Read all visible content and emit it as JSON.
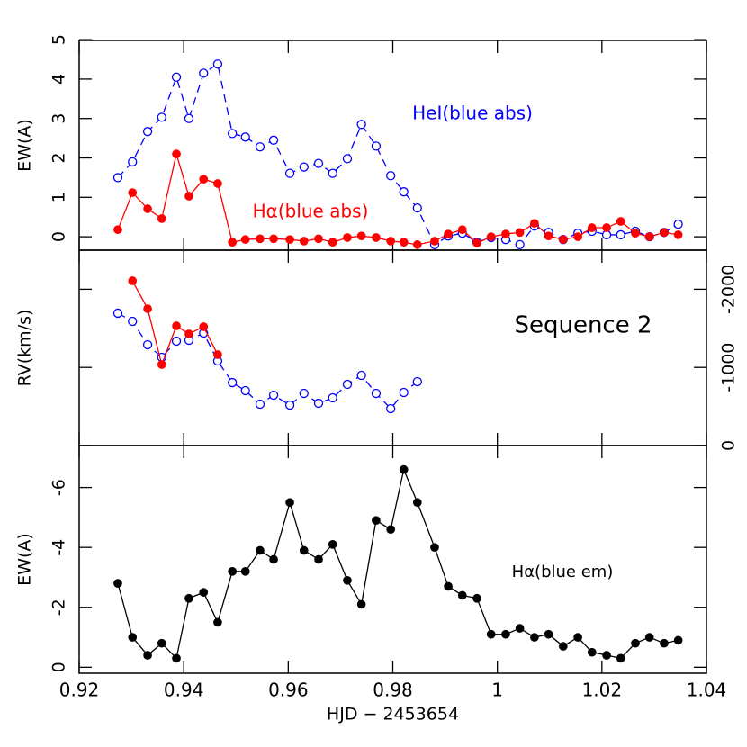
{
  "chart_data": [
    {
      "type": "line",
      "ylabel": "EW(A)",
      "ylim": [
        -0.34,
        4.98
      ],
      "yticks": [
        0,
        1,
        2,
        3,
        4,
        5
      ],
      "x": [
        0.9274,
        0.9302,
        0.9331,
        0.9358,
        0.9386,
        0.941,
        0.9438,
        0.9465,
        0.9493,
        0.9518,
        0.9546,
        0.9572,
        0.9603,
        0.963,
        0.9658,
        0.9685,
        0.9713,
        0.974,
        0.9768,
        0.9796,
        0.9821,
        0.9847,
        0.988,
        0.9906,
        0.9933,
        0.9961,
        0.9988,
        1.0016,
        1.0043,
        1.0071,
        1.0098,
        1.0126,
        1.0154,
        1.0181,
        1.0209,
        1.0236,
        1.0264,
        1.0291,
        1.0319,
        1.0346
      ],
      "series": [
        {
          "name": "HeI(blue abs)",
          "color": "#0000ff",
          "marker": "open",
          "linestyle": "dashed",
          "values": [
            1.5,
            1.9,
            2.67,
            3.03,
            4.05,
            3.0,
            4.15,
            4.38,
            2.62,
            2.53,
            2.28,
            2.45,
            1.61,
            1.77,
            1.86,
            1.61,
            1.98,
            2.85,
            2.3,
            1.55,
            1.14,
            0.73,
            -0.2,
            0.02,
            0.09,
            -0.14,
            -0.02,
            -0.07,
            -0.2,
            0.27,
            0.11,
            -0.07,
            0.09,
            0.14,
            0.05,
            0.05,
            0.14,
            0,
            0.11,
            0.32
          ]
        },
        {
          "name": "Hα(blue abs)",
          "color": "#ff0000",
          "marker": "filled",
          "linestyle": "solid",
          "values": [
            0.18,
            1.12,
            0.71,
            0.46,
            2.1,
            1.03,
            1.46,
            1.35,
            -0.14,
            -0.07,
            -0.05,
            -0.05,
            -0.07,
            -0.11,
            -0.05,
            -0.14,
            -0.02,
            0.02,
            -0.02,
            -0.11,
            -0.14,
            -0.2,
            -0.11,
            0.07,
            0.18,
            -0.16,
            0,
            0.07,
            0.11,
            0.34,
            0.02,
            -0.07,
            0,
            0.23,
            0.23,
            0.39,
            0.09,
            0,
            0.11,
            0.05
          ]
        }
      ]
    },
    {
      "type": "line",
      "ylabel": "RV(km/s)",
      "annotation": "Sequence 2",
      "y2lim": [
        0,
        -2500
      ],
      "y2ticks": [
        0,
        -1000,
        -2000
      ],
      "series": [
        {
          "name": "HeI",
          "color": "#0000ff",
          "marker": "open",
          "linestyle": "dashed",
          "axis": "y2",
          "x": [
            0.9274,
            0.9302,
            0.9331,
            0.9358,
            0.9386,
            0.941,
            0.9438,
            0.9465,
            0.9493,
            0.9518,
            0.9546,
            0.9572,
            0.9603,
            0.963,
            0.9658,
            0.9685,
            0.9713,
            0.974,
            0.9768,
            0.9796,
            0.9821,
            0.9847
          ],
          "values": [
            -1694,
            -1590,
            -1290,
            -1129,
            -1336,
            -1348,
            -1440,
            -1083,
            -806,
            -703,
            -530,
            -645,
            -518,
            -668,
            -541,
            -611,
            -783,
            -899,
            -668,
            -472,
            -680,
            -818
          ]
        },
        {
          "name": "Hα",
          "color": "#ff0000",
          "marker": "filled",
          "linestyle": "solid",
          "axis": "y2",
          "x": [
            0.9302,
            0.9331,
            0.9358,
            0.9386,
            0.941,
            0.9438,
            0.9465
          ],
          "values": [
            -2108,
            -1751,
            -1037,
            -1532,
            -1429,
            -1521,
            -1164
          ]
        }
      ]
    },
    {
      "type": "line",
      "ylabel": "EW(A)",
      "xlabel": "HJD − 2453654",
      "ylim": [
        0.2,
        -7.4
      ],
      "yticks": [
        0,
        -2,
        -4,
        -6
      ],
      "xlim": [
        0.92,
        1.04
      ],
      "xticks": [
        0.92,
        0.94,
        0.96,
        0.98,
        1,
        1.02,
        1.04
      ],
      "x": [
        0.9274,
        0.9302,
        0.9331,
        0.9358,
        0.9386,
        0.941,
        0.9438,
        0.9465,
        0.9493,
        0.9518,
        0.9546,
        0.9572,
        0.9603,
        0.963,
        0.9658,
        0.9685,
        0.9713,
        0.974,
        0.9768,
        0.9796,
        0.9821,
        0.9847,
        0.988,
        0.9906,
        0.9933,
        0.9961,
        0.9988,
        1.0016,
        1.0043,
        1.0071,
        1.0098,
        1.0126,
        1.0154,
        1.0181,
        1.0209,
        1.0236,
        1.0264,
        1.0291,
        1.0319,
        1.0346
      ],
      "series": [
        {
          "name": "Hα(blue em)",
          "color": "#000000",
          "marker": "filled",
          "linestyle": "solid",
          "values": [
            -2.8,
            -1.0,
            -0.4,
            -0.8,
            -0.3,
            -2.3,
            -2.5,
            -1.5,
            -3.2,
            -3.2,
            -3.9,
            -3.6,
            -5.5,
            -3.9,
            -3.6,
            -4.1,
            -2.9,
            -2.1,
            -4.9,
            -4.6,
            -6.6,
            -5.5,
            -4.0,
            -2.7,
            -2.4,
            -2.3,
            -1.1,
            -1.1,
            -1.3,
            -1.0,
            -1.1,
            -0.7,
            -1.0,
            -0.5,
            -0.4,
            -0.3,
            -0.8,
            -1.0,
            -0.8,
            -0.9
          ]
        }
      ]
    }
  ]
}
